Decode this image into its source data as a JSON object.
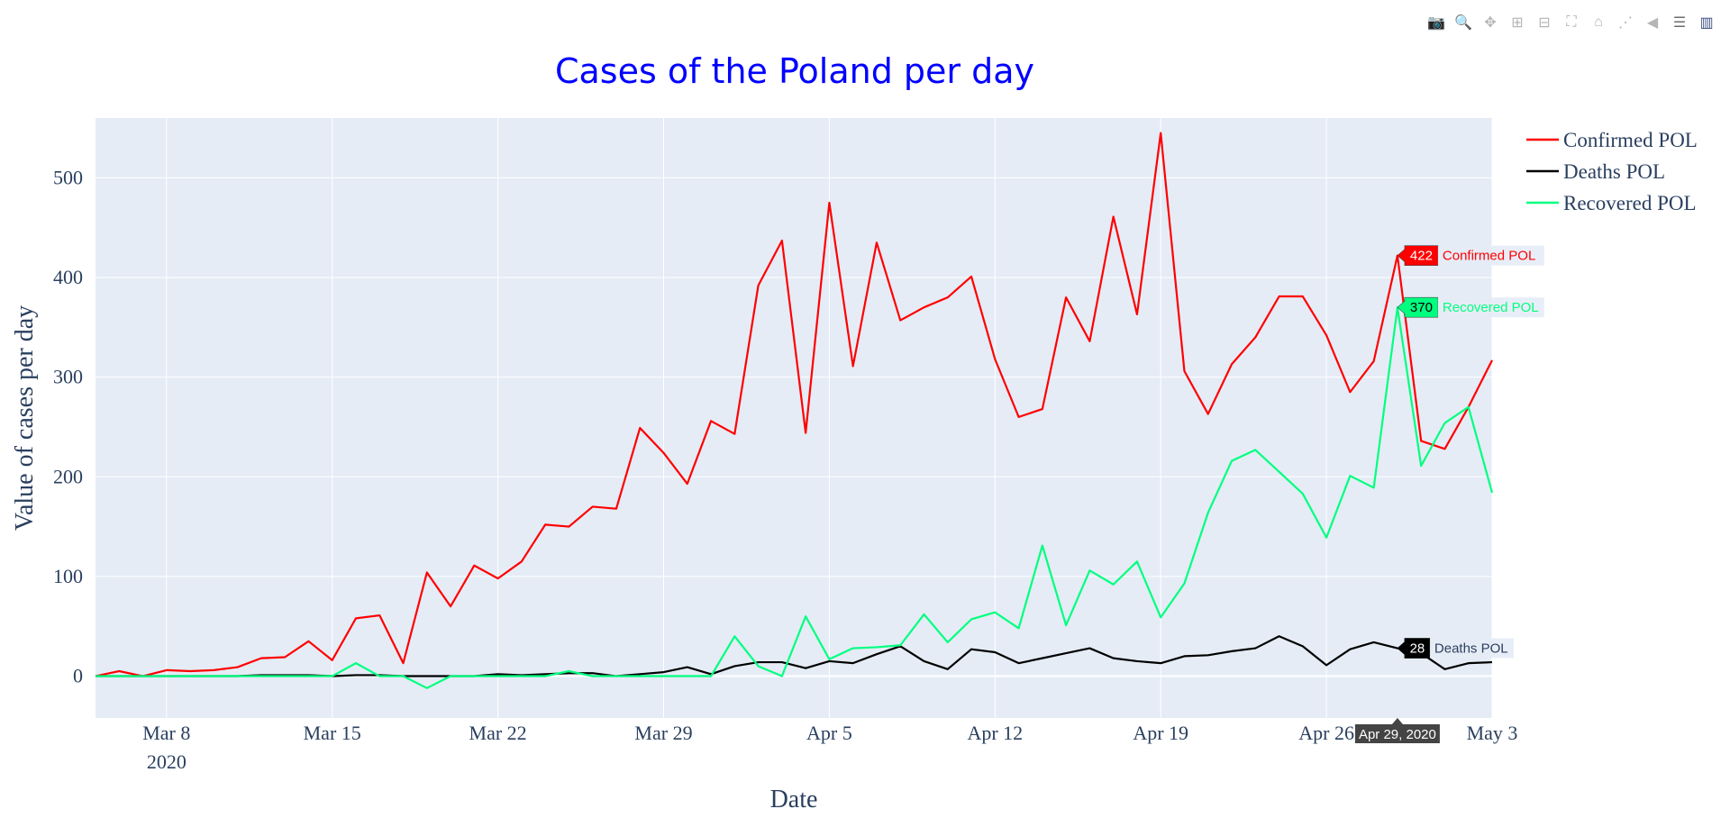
{
  "modebar": {
    "buttons": [
      {
        "name": "download-plot-button",
        "icon": "camera-icon",
        "glyph": "📷"
      },
      {
        "name": "zoom-button",
        "icon": "magnifier-icon",
        "glyph": "🔍",
        "active": true
      },
      {
        "name": "pan-button",
        "icon": "pan-icon",
        "glyph": "✥"
      },
      {
        "name": "zoom-in-button",
        "icon": "plus-box-icon",
        "glyph": "⊞"
      },
      {
        "name": "zoom-out-button",
        "icon": "minus-box-icon",
        "glyph": "⊟"
      },
      {
        "name": "autoscale-button",
        "icon": "autoscale-icon",
        "glyph": "⛶"
      },
      {
        "name": "reset-axes-button",
        "icon": "home-icon",
        "glyph": "⌂"
      },
      {
        "name": "spike-lines-button",
        "icon": "spike-icon",
        "glyph": "⋰"
      },
      {
        "name": "hover-closest-button",
        "icon": "tag-icon",
        "glyph": "◀"
      },
      {
        "name": "hover-compare-button",
        "icon": "tags-icon",
        "glyph": "☰",
        "active": true
      },
      {
        "name": "plotly-logo-button",
        "icon": "plotly-logo-icon",
        "glyph": "▥",
        "logo": true
      }
    ]
  },
  "chart_data": {
    "type": "line",
    "title": "Cases of the Poland per day",
    "xlabel": "Date",
    "ylabel": "Value of cases per day",
    "x_start": "2020-03-05",
    "x_end": "2020-05-03",
    "x_tick_labels": [
      "Mar 8",
      "Mar 15",
      "Mar 22",
      "Mar 29",
      "Apr 5",
      "Apr 12",
      "Apr 19",
      "Apr 26",
      "May 3"
    ],
    "x_tick_year_label": "2020",
    "ylim": [
      -42,
      560
    ],
    "y_ticks": [
      0,
      100,
      200,
      300,
      400,
      500
    ],
    "grid": true,
    "legend_position": "top-right",
    "hover_date_label": "Apr 29, 2020",
    "series": [
      {
        "name": "Confirmed POL",
        "color": "#ff0000",
        "hover_value": "422",
        "values": [
          0,
          5,
          0,
          6,
          5,
          6,
          9,
          18,
          19,
          35,
          16,
          58,
          61,
          13,
          104,
          70,
          111,
          98,
          115,
          152,
          150,
          170,
          168,
          249,
          224,
          193,
          256,
          243,
          392,
          437,
          244,
          475,
          311,
          435,
          357,
          370,
          380,
          401,
          318,
          260,
          268,
          380,
          336,
          461,
          363,
          545,
          306,
          263,
          313,
          340,
          381,
          381,
          342,
          285,
          316,
          422,
          236,
          228,
          270,
          317
        ]
      },
      {
        "name": "Deaths POL",
        "color": "#000000",
        "hover_value": "28",
        "values": [
          0,
          0,
          0,
          0,
          0,
          0,
          0,
          1,
          1,
          1,
          0,
          1,
          1,
          0,
          0,
          0,
          0,
          2,
          1,
          2,
          3,
          3,
          0,
          2,
          4,
          9,
          2,
          10,
          14,
          14,
          8,
          15,
          13,
          22,
          30,
          15,
          7,
          27,
          24,
          13,
          18,
          23,
          28,
          18,
          15,
          13,
          20,
          21,
          25,
          28,
          40,
          30,
          11,
          27,
          34,
          28,
          23,
          7,
          13,
          14
        ]
      },
      {
        "name": "Recovered POL",
        "color": "#00ff7f",
        "hover_value": "370",
        "values": [
          0,
          0,
          0,
          0,
          0,
          0,
          0,
          0,
          0,
          0,
          0,
          13,
          0,
          0,
          -12,
          0,
          0,
          0,
          0,
          0,
          5,
          0,
          0,
          0,
          0,
          0,
          0,
          40,
          10,
          0,
          60,
          17,
          28,
          29,
          31,
          62,
          34,
          57,
          64,
          48,
          131,
          51,
          106,
          92,
          115,
          59,
          93,
          164,
          216,
          227,
          205,
          183,
          139,
          201,
          189,
          370,
          211,
          254,
          270,
          184
        ]
      }
    ]
  }
}
